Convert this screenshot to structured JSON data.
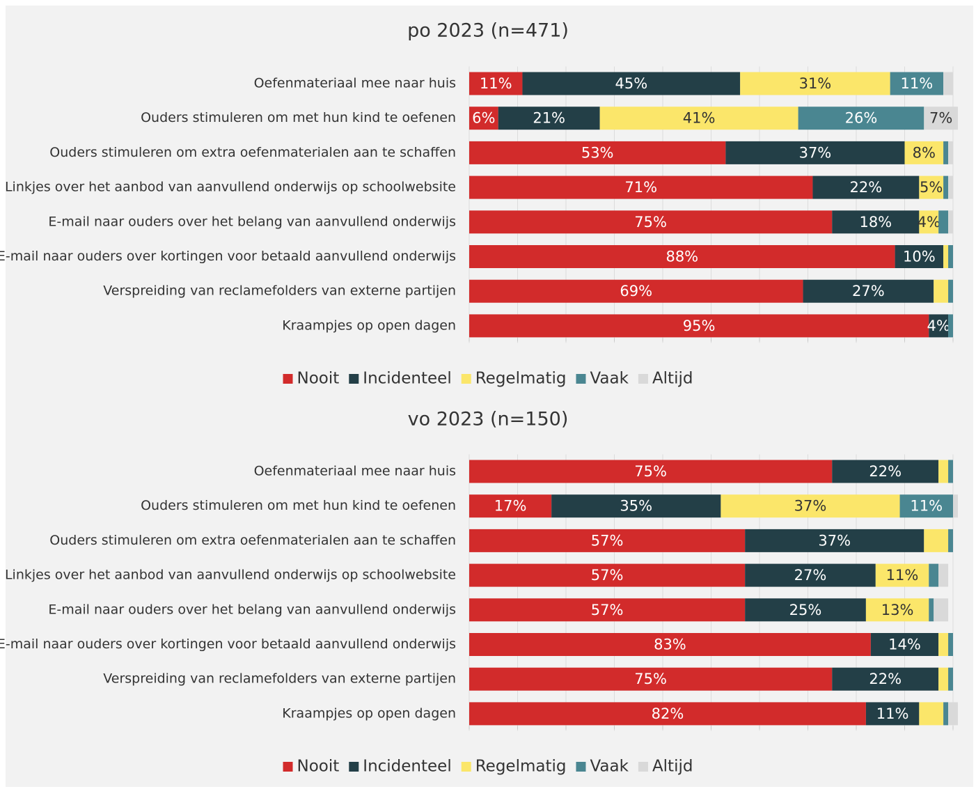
{
  "chart_data": [
    {
      "type": "stacked-bar-horizontal",
      "title": "po 2023 (n=471)",
      "categories": [
        "Oefenmateriaal mee naar huis",
        "Ouders stimuleren om met hun kind te oefenen",
        "Ouders stimuleren om extra oefenmaterialen aan te schaffen",
        "Linkjes over het aanbod van aanvullend onderwijs op schoolwebsite",
        "E-mail naar ouders over het belang van aanvullend onderwijs",
        "E-mail naar ouders over kortingen voor betaald aanvullend onderwijs",
        "Verspreiding van reclamefolders van externe partijen",
        "Kraampjes op open dagen"
      ],
      "series": [
        {
          "name": "Nooit",
          "color": "#d22b2b",
          "values": [
            11,
            6,
            53,
            71,
            75,
            88,
            69,
            95
          ],
          "value_labels": [
            "11%",
            "6%",
            "53%",
            "71%",
            "75%",
            "88%",
            "69%",
            "95%"
          ]
        },
        {
          "name": "Incidenteel",
          "color": "#233f47",
          "values": [
            45,
            21,
            37,
            22,
            18,
            10,
            27,
            4
          ],
          "value_labels": [
            "45%",
            "21%",
            "37%",
            "22%",
            "18%",
            "10%",
            "27%",
            "4%"
          ]
        },
        {
          "name": "Regelmatig",
          "color": "#fbe66a",
          "values": [
            31,
            41,
            8,
            5,
            4,
            1,
            3,
            0
          ],
          "value_labels": [
            "31%",
            "41%",
            "8%",
            "5%",
            "4%",
            null,
            null,
            null
          ]
        },
        {
          "name": "Vaak",
          "color": "#4a8691",
          "values": [
            11,
            26,
            1,
            1,
            2,
            1,
            1,
            1
          ],
          "value_labels": [
            "11%",
            "26%",
            null,
            null,
            null,
            null,
            null,
            null
          ]
        },
        {
          "name": "Altijd",
          "color": "#d9d9d9",
          "values": [
            2,
            7,
            1,
            1,
            1,
            0,
            0,
            0
          ],
          "value_labels": [
            null,
            "7%",
            null,
            null,
            null,
            null,
            null,
            null
          ]
        }
      ],
      "xlim": [
        0,
        100
      ],
      "xticks": [
        0,
        10,
        20,
        30,
        40,
        50,
        60,
        70,
        80,
        90,
        100
      ],
      "grid": true,
      "legend": "bottom"
    },
    {
      "type": "stacked-bar-horizontal",
      "title": "vo 2023 (n=150)",
      "categories": [
        "Oefenmateriaal mee naar huis",
        "Ouders stimuleren om met hun kind te oefenen",
        "Ouders stimuleren om extra oefenmaterialen aan te schaffen",
        "Linkjes over het aanbod van aanvullend onderwijs op schoolwebsite",
        "E-mail naar ouders over het belang van aanvullend onderwijs",
        "E-mail naar ouders over kortingen voor betaald aanvullend onderwijs",
        "Verspreiding van reclamefolders van externe partijen",
        "Kraampjes op open dagen"
      ],
      "series": [
        {
          "name": "Nooit",
          "color": "#d22b2b",
          "values": [
            75,
            17,
            57,
            57,
            57,
            83,
            75,
            82
          ],
          "value_labels": [
            "75%",
            "17%",
            "57%",
            "57%",
            "57%",
            "83%",
            "75%",
            "82%"
          ]
        },
        {
          "name": "Incidenteel",
          "color": "#233f47",
          "values": [
            22,
            35,
            37,
            27,
            25,
            14,
            22,
            11
          ],
          "value_labels": [
            "22%",
            "35%",
            "37%",
            "27%",
            "25%",
            "14%",
            "22%",
            "11%"
          ]
        },
        {
          "name": "Regelmatig",
          "color": "#fbe66a",
          "values": [
            2,
            37,
            5,
            11,
            13,
            2,
            2,
            5
          ],
          "value_labels": [
            null,
            "37%",
            null,
            "11%",
            "13%",
            null,
            null,
            null
          ]
        },
        {
          "name": "Vaak",
          "color": "#4a8691",
          "values": [
            1,
            11,
            1,
            2,
            1,
            1,
            1,
            1
          ],
          "value_labels": [
            null,
            "11%",
            null,
            null,
            null,
            null,
            null,
            null
          ]
        },
        {
          "name": "Altijd",
          "color": "#d9d9d9",
          "values": [
            0,
            1,
            0,
            2,
            3,
            0,
            0,
            2
          ],
          "value_labels": [
            null,
            null,
            null,
            null,
            null,
            null,
            null,
            null
          ]
        }
      ],
      "xlim": [
        0,
        100
      ],
      "xticks": [
        0,
        10,
        20,
        30,
        40,
        50,
        60,
        70,
        80,
        90,
        100
      ],
      "grid": true,
      "legend": "bottom"
    }
  ]
}
